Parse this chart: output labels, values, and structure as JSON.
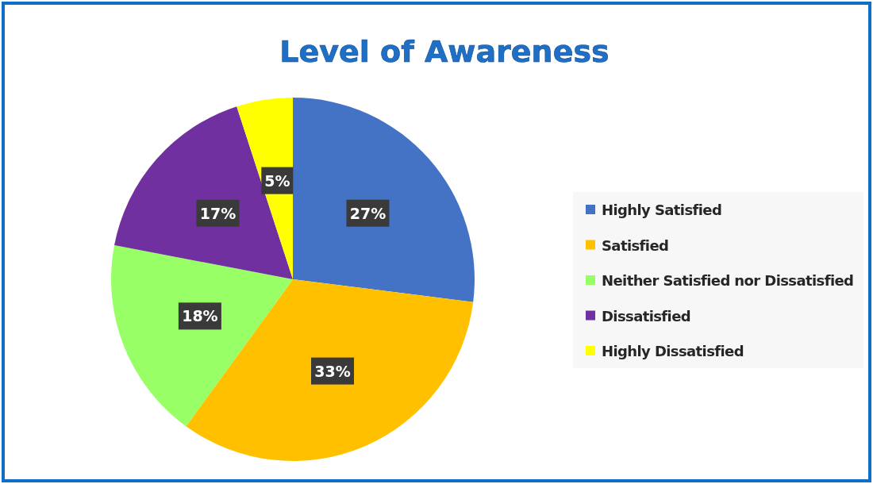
{
  "chart_data": {
    "type": "pie",
    "title": "Level of Awareness",
    "categories": [
      "Highly Satisfied",
      "Satisfied",
      "Neither Satisfied nor Dissatisfied",
      "Dissatisfied",
      "Highly Dissatisfied"
    ],
    "values": [
      27,
      33,
      18,
      17,
      5
    ],
    "colors": [
      "#4472c4",
      "#ffc000",
      "#99ff66",
      "#7030a0",
      "#ffff00"
    ],
    "value_labels": [
      "27%",
      "33%",
      "18%",
      "17%",
      "5%"
    ],
    "legend": "right"
  }
}
